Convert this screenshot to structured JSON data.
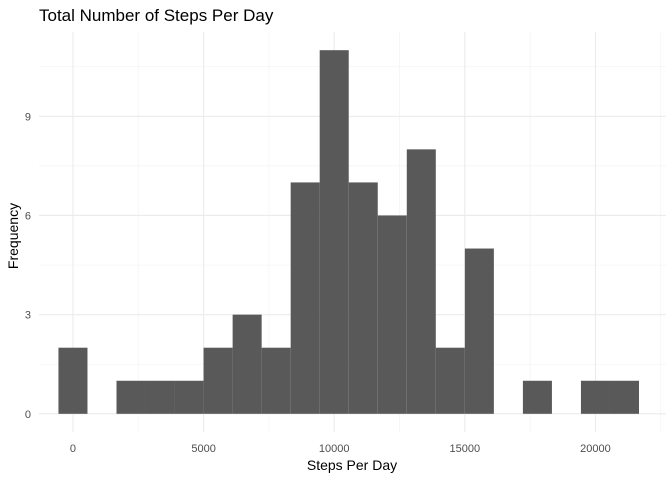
{
  "chart_data": {
    "type": "bar",
    "title": "Total Number of Steps Per Day",
    "xlabel": "Steps Per Day",
    "ylabel": "Frequency",
    "bar_color": "#595959",
    "grid": true,
    "legend": "none",
    "bin_width": 1111,
    "bins": [
      {
        "x": 0,
        "count": 2
      },
      {
        "x": 1111,
        "count": 0
      },
      {
        "x": 2222,
        "count": 1
      },
      {
        "x": 3333,
        "count": 1
      },
      {
        "x": 4444,
        "count": 1
      },
      {
        "x": 5556,
        "count": 2
      },
      {
        "x": 6667,
        "count": 3
      },
      {
        "x": 7778,
        "count": 2
      },
      {
        "x": 8889,
        "count": 7
      },
      {
        "x": 10000,
        "count": 11
      },
      {
        "x": 11111,
        "count": 7
      },
      {
        "x": 12222,
        "count": 6
      },
      {
        "x": 13333,
        "count": 8
      },
      {
        "x": 14444,
        "count": 2
      },
      {
        "x": 15556,
        "count": 5
      },
      {
        "x": 16667,
        "count": 0
      },
      {
        "x": 17778,
        "count": 1
      },
      {
        "x": 18889,
        "count": 0
      },
      {
        "x": 20000,
        "count": 1
      },
      {
        "x": 21111,
        "count": 1
      }
    ],
    "xlim": [
      -1300,
      22700
    ],
    "ylim": [
      -0.55,
      11.55
    ],
    "x_ticks": [
      0,
      5000,
      10000,
      15000,
      20000
    ],
    "x_tick_labels": [
      "0",
      "5000",
      "10000",
      "15000",
      "20000"
    ],
    "y_ticks": [
      0,
      3,
      6,
      9
    ],
    "y_tick_labels": [
      "0",
      "3",
      "6",
      "9"
    ]
  }
}
